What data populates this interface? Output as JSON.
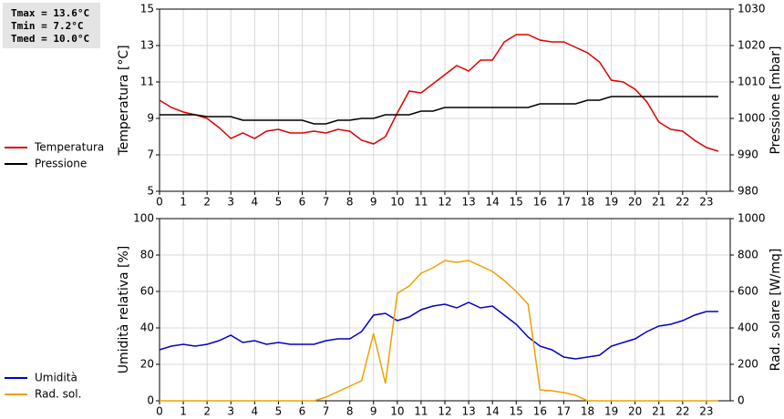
{
  "chart_data": [
    {
      "type": "line",
      "annotations": [
        "Tmax = 13.6°C",
        "Tmin =  7.2°C",
        "Tmed = 10.0°C"
      ],
      "ylabel": "Temperatura [°C]",
      "y2label": "Pressione [mbar]",
      "grid": true,
      "legend": "left",
      "x": [
        0,
        0.5,
        1,
        1.5,
        2,
        2.5,
        3,
        3.5,
        4,
        4.5,
        5,
        5.5,
        6,
        6.5,
        7,
        7.5,
        8,
        8.5,
        9,
        9.5,
        10,
        10.5,
        11,
        11.5,
        12,
        12.5,
        13,
        13.5,
        14,
        14.5,
        15,
        15.5,
        16,
        16.5,
        17,
        17.5,
        18,
        18.5,
        19,
        19.5,
        20,
        20.5,
        21,
        21.5,
        22,
        22.5,
        23,
        23.5
      ],
      "xlim": [
        0,
        24
      ],
      "xticks": [
        0,
        1,
        2,
        3,
        4,
        5,
        6,
        7,
        8,
        9,
        10,
        11,
        12,
        13,
        14,
        15,
        16,
        17,
        18,
        19,
        20,
        21,
        22,
        23
      ],
      "ylim": [
        5,
        15
      ],
      "yticks": [
        5,
        7,
        9,
        11,
        13,
        15
      ],
      "y2lim": [
        980,
        1030
      ],
      "y2ticks": [
        980,
        990,
        1000,
        1010,
        1020,
        1030
      ],
      "series": [
        {
          "name": "Temperatura",
          "color": "#dd0000",
          "values": [
            10.0,
            9.6,
            9.35,
            9.2,
            9.0,
            8.5,
            7.9,
            8.2,
            7.9,
            8.3,
            8.4,
            8.2,
            8.2,
            8.3,
            8.2,
            8.4,
            8.3,
            7.8,
            7.6,
            8.0,
            9.3,
            10.5,
            10.4,
            10.9,
            11.4,
            11.9,
            11.6,
            12.2,
            12.2,
            13.2,
            13.6,
            13.6,
            13.3,
            13.2,
            13.2,
            12.9,
            12.6,
            12.1,
            11.1,
            11.0,
            10.6,
            9.9,
            8.8,
            8.4,
            8.3,
            7.8,
            7.4,
            7.2
          ]
        },
        {
          "name": "Pressione",
          "color": "#000000",
          "axis": "y2",
          "values": [
            1001,
            1001,
            1001,
            1001,
            1000.5,
            1000.5,
            1000.5,
            999.5,
            999.5,
            999.5,
            999.5,
            999.5,
            999.5,
            998.5,
            998.5,
            999.5,
            999.5,
            1000,
            1000,
            1001,
            1001,
            1001,
            1002,
            1002,
            1003,
            1003,
            1003,
            1003,
            1003,
            1003,
            1003,
            1003,
            1004,
            1004,
            1004,
            1004,
            1005,
            1005,
            1006,
            1006,
            1006,
            1006,
            1006,
            1006,
            1006,
            1006,
            1006,
            1006
          ]
        }
      ]
    },
    {
      "type": "line",
      "ylabel": "Umidità relativa [%]",
      "y2label": "Rad. solare [W/mq]",
      "grid": true,
      "legend": "left",
      "x": [
        0,
        0.5,
        1,
        1.5,
        2,
        2.5,
        3,
        3.5,
        4,
        4.5,
        5,
        5.5,
        6,
        6.5,
        7,
        7.5,
        8,
        8.5,
        9,
        9.5,
        10,
        10.5,
        11,
        11.5,
        12,
        12.5,
        13,
        13.5,
        14,
        14.5,
        15,
        15.5,
        16,
        16.5,
        17,
        17.5,
        18,
        18.5,
        19,
        19.5,
        20,
        20.5,
        21,
        21.5,
        22,
        22.5,
        23,
        23.5
      ],
      "xlim": [
        0,
        24
      ],
      "xticks": [
        0,
        1,
        2,
        3,
        4,
        5,
        6,
        7,
        8,
        9,
        10,
        11,
        12,
        13,
        14,
        15,
        16,
        17,
        18,
        19,
        20,
        21,
        22,
        23
      ],
      "ylim": [
        0,
        100
      ],
      "yticks": [
        0,
        20,
        40,
        60,
        80,
        100
      ],
      "y2lim": [
        0,
        1000
      ],
      "y2ticks": [
        0,
        200,
        400,
        600,
        800,
        1000
      ],
      "series": [
        {
          "name": "Umidità",
          "color": "#0000cc",
          "values": [
            28,
            30,
            31,
            30,
            31,
            33,
            36,
            32,
            33,
            31,
            32,
            31,
            31,
            31,
            33,
            34,
            34,
            38,
            47,
            48,
            44,
            46,
            50,
            52,
            53,
            51,
            54,
            51,
            52,
            47,
            42,
            35,
            30,
            28,
            24,
            23,
            24,
            25,
            30,
            32,
            34,
            38,
            41,
            42,
            44,
            47,
            49,
            49
          ]
        },
        {
          "name": "Rad. sol.",
          "color": "#f0a000",
          "axis": "y2",
          "values": [
            0,
            0,
            0,
            0,
            0,
            0,
            0,
            0,
            0,
            0,
            0,
            0,
            0,
            0,
            20,
            50,
            80,
            110,
            370,
            95,
            590,
            630,
            700,
            730,
            770,
            760,
            770,
            740,
            710,
            660,
            600,
            530,
            60,
            55,
            45,
            30,
            0,
            0,
            0,
            0,
            0,
            0,
            0,
            0,
            0,
            0,
            0,
            0
          ]
        }
      ]
    }
  ]
}
